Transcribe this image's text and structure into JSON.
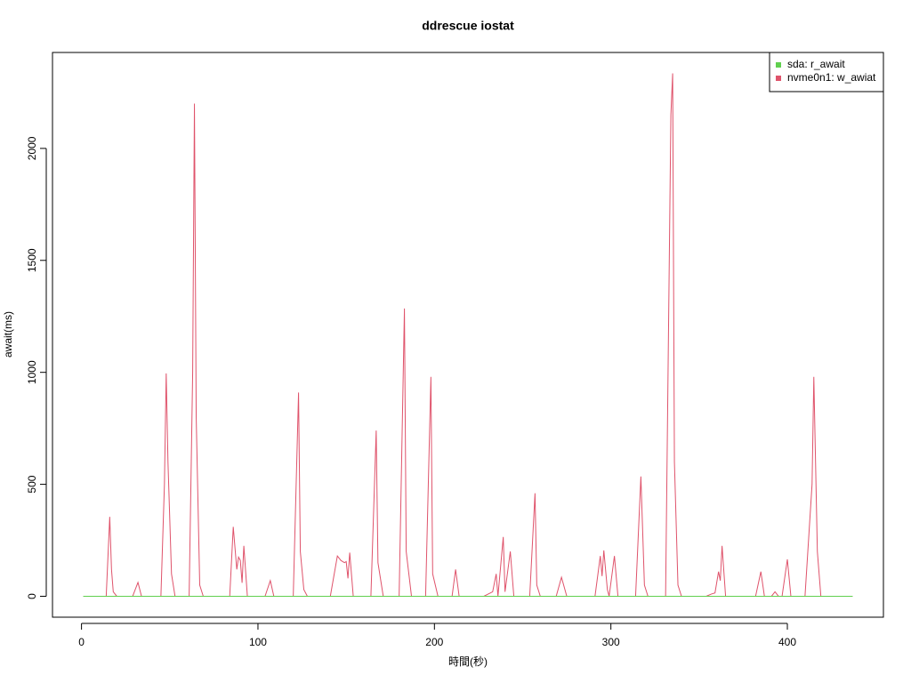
{
  "chart_data": {
    "type": "line",
    "title": "ddrescue iostat",
    "x_label": "時間(秒)",
    "y_label": "await(ms)",
    "x": [
      1,
      14,
      16,
      17,
      18,
      20,
      29,
      32,
      34,
      45,
      47,
      48,
      49,
      51,
      53,
      61,
      63,
      64,
      65,
      67,
      69,
      84,
      86,
      88,
      89,
      90,
      91,
      92,
      94,
      104,
      107,
      109,
      120,
      123,
      124,
      126,
      128,
      141,
      145,
      147,
      149,
      150,
      151,
      152,
      154,
      164,
      167,
      168,
      171,
      180,
      183,
      184,
      187,
      195,
      198,
      199,
      202,
      210,
      212,
      214,
      228,
      233,
      235,
      236,
      239,
      240,
      243,
      245,
      254,
      257,
      258,
      260,
      269,
      272,
      275,
      291,
      294,
      295,
      296,
      298,
      299,
      302,
      304,
      314,
      317,
      319,
      321,
      331,
      334,
      335,
      336,
      338,
      340,
      354,
      357,
      359,
      361,
      362,
      363,
      365,
      382,
      385,
      387,
      391,
      393,
      395,
      397,
      400,
      402,
      410,
      414,
      415,
      417,
      419,
      437
    ],
    "series": [
      {
        "name": "sda: r_await",
        "color": "#61D04F",
        "values": [
          0,
          0,
          0,
          0,
          0,
          0,
          0,
          0,
          0,
          0,
          0,
          0,
          0,
          0,
          0,
          0,
          0,
          0,
          0,
          0,
          0,
          0,
          0,
          0,
          0,
          0,
          0,
          0,
          0,
          0,
          0,
          0,
          0,
          0,
          0,
          0,
          0,
          0,
          0,
          0,
          0,
          0,
          0,
          0,
          0,
          0,
          0,
          0,
          0,
          0,
          0,
          0,
          0,
          0,
          0,
          0,
          0,
          0,
          0,
          0,
          0,
          0,
          0,
          0,
          0,
          0,
          0,
          0,
          0,
          0,
          0,
          0,
          0,
          0,
          0,
          0,
          0,
          0,
          0,
          0,
          0,
          0,
          0,
          0,
          0,
          0,
          0,
          0,
          0,
          0,
          0,
          0,
          0,
          0,
          0,
          0,
          0,
          0,
          0,
          0,
          0,
          0,
          0,
          0,
          0,
          0,
          0,
          0,
          0,
          0,
          0,
          0,
          0,
          0,
          0
        ]
      },
      {
        "name": "nvme0n1: w_awiat",
        "color": "#DF536B",
        "values": [
          0,
          0,
          355,
          120,
          20,
          0,
          0,
          62,
          0,
          0,
          500,
          995,
          600,
          100,
          0,
          0,
          1000,
          2200,
          800,
          50,
          0,
          0,
          310,
          120,
          175,
          160,
          60,
          225,
          0,
          0,
          70,
          0,
          0,
          910,
          200,
          30,
          0,
          0,
          180,
          160,
          150,
          155,
          80,
          195,
          0,
          0,
          740,
          150,
          0,
          0,
          1285,
          200,
          0,
          0,
          980,
          100,
          0,
          0,
          120,
          0,
          0,
          20,
          100,
          0,
          265,
          20,
          200,
          0,
          0,
          460,
          50,
          0,
          0,
          85,
          0,
          0,
          180,
          90,
          205,
          30,
          0,
          180,
          0,
          0,
          535,
          50,
          0,
          0,
          2150,
          2335,
          600,
          50,
          0,
          0,
          10,
          15,
          110,
          70,
          225,
          0,
          0,
          110,
          0,
          0,
          20,
          0,
          0,
          165,
          0,
          0,
          500,
          980,
          200,
          0,
          0
        ]
      }
    ],
    "xlim": [
      -16.44,
      454.44
    ],
    "ylim": [
      -93.4,
      2428.4
    ],
    "xticks": [
      0,
      100,
      200,
      300,
      400
    ],
    "yticks": [
      0,
      500,
      1000,
      1500,
      2000
    ],
    "legend": "top-right"
  }
}
